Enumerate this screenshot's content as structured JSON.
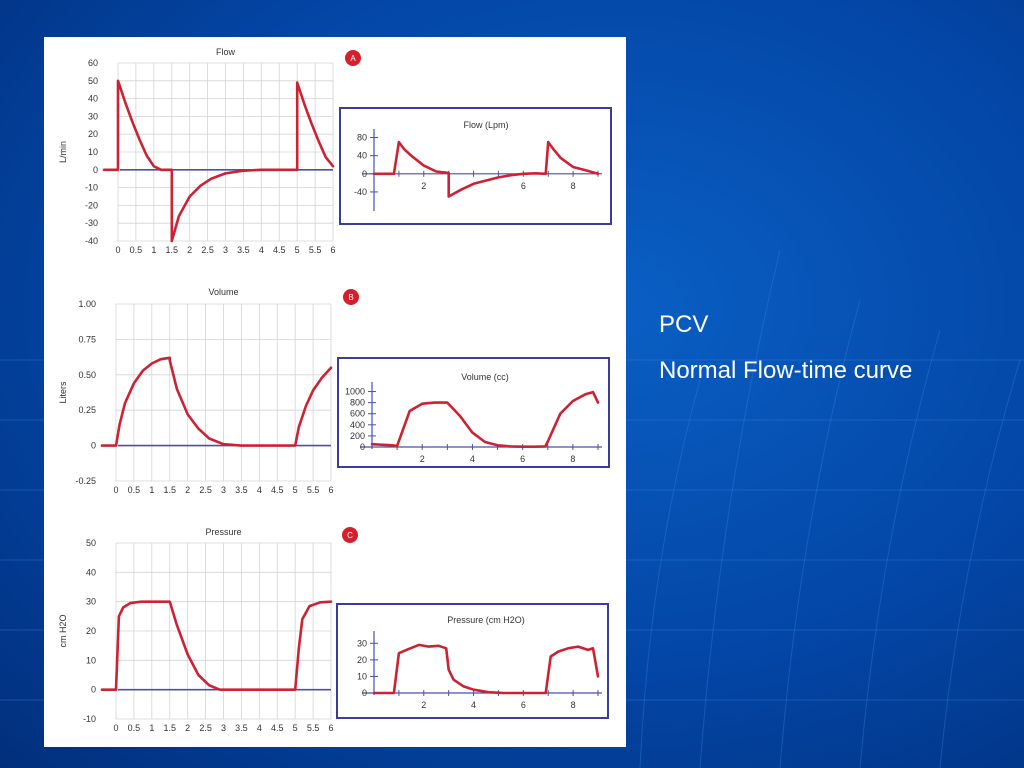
{
  "slide": {
    "title": "PCV",
    "subtitle": "Normal Flow-time curve",
    "colors": {
      "background": "#0346a6",
      "curve": "#cc2233",
      "baseline": "#4a4fb0",
      "frame": "#3c3c9a"
    }
  },
  "chart_data": [
    {
      "id": "flow-main",
      "type": "line",
      "title": "Flow",
      "ylabel": "L/min",
      "xlabel": "",
      "badge": "A",
      "grid": true,
      "xlim": [
        0,
        6
      ],
      "ylim": [
        -40,
        60
      ],
      "x_ticks": [
        "0",
        "0.5",
        "1",
        "1.5",
        "2",
        "2.5",
        "3",
        "3.5",
        "4",
        "4.5",
        "5",
        "5.5",
        "6"
      ],
      "y_ticks": [
        "60",
        "50",
        "40",
        "30",
        "20",
        "10",
        "0",
        "-10",
        "-20",
        "-30",
        "-40"
      ],
      "series": [
        {
          "x": [
            -0.4,
            0,
            0,
            0.2,
            0.4,
            0.6,
            0.8,
            1,
            1.2,
            1.4,
            1.5,
            1.5,
            1.7,
            2,
            2.3,
            2.6,
            3,
            3.5,
            4,
            4.5,
            5,
            5,
            5.2,
            5.4,
            5.6,
            5.8,
            6
          ],
          "y": [
            0,
            0,
            50,
            38,
            27,
            17,
            8,
            2,
            0,
            0,
            0,
            -40,
            -26,
            -15,
            -9,
            -5,
            -2,
            -0.5,
            0,
            0,
            0,
            49,
            37,
            26,
            16,
            7,
            2
          ]
        }
      ]
    },
    {
      "id": "flow-inset",
      "type": "line",
      "title": "Flow (Lpm)",
      "xlabel": "",
      "ylabel": "",
      "xlim": [
        0,
        9
      ],
      "ylim": [
        -60,
        90
      ],
      "x_ticks": [
        "2",
        "6",
        "8"
      ],
      "y_ticks": [
        "80",
        "40",
        "0",
        "-40"
      ],
      "series": [
        {
          "x": [
            0,
            0.8,
            1,
            1.2,
            1.5,
            2,
            2.5,
            3,
            3,
            3.5,
            4,
            5,
            5.5,
            6,
            6.5,
            6.9,
            7,
            7.2,
            7.5,
            8,
            8.5,
            9
          ],
          "y": [
            0,
            0,
            70,
            55,
            40,
            18,
            5,
            2,
            -50,
            -35,
            -22,
            -8,
            -3,
            0,
            1,
            0,
            70,
            55,
            35,
            15,
            8,
            0
          ]
        }
      ]
    },
    {
      "id": "volume-main",
      "type": "line",
      "title": "Volume",
      "ylabel": "Liters",
      "xlabel": "",
      "badge": "B",
      "grid": true,
      "xlim": [
        0,
        6
      ],
      "ylim": [
        -0.25,
        1.0
      ],
      "x_ticks": [
        "0",
        "0.5",
        "1",
        "1.5",
        "2",
        "2.5",
        "3",
        "3.5",
        "4",
        "4.5",
        "5",
        "5.5",
        "6"
      ],
      "y_ticks": [
        "1.00",
        "0.75",
        "0.50",
        "0.25",
        "0",
        "-0.25"
      ],
      "series": [
        {
          "x": [
            -0.4,
            0,
            0.1,
            0.25,
            0.5,
            0.75,
            1,
            1.25,
            1.5,
            1.5,
            1.7,
            2,
            2.3,
            2.6,
            3,
            3.5,
            4,
            4.5,
            5,
            5.1,
            5.3,
            5.5,
            5.75,
            6
          ],
          "y": [
            0,
            0,
            0.15,
            0.3,
            0.44,
            0.53,
            0.58,
            0.61,
            0.62,
            0.6,
            0.4,
            0.22,
            0.12,
            0.05,
            0.01,
            0,
            0,
            0,
            0,
            0.13,
            0.28,
            0.39,
            0.48,
            0.55
          ]
        }
      ]
    },
    {
      "id": "volume-inset",
      "type": "line",
      "title": "Volume (cc)",
      "xlabel": "",
      "ylabel": "",
      "xlim": [
        0,
        9
      ],
      "ylim": [
        0,
        1100
      ],
      "x_ticks": [
        "2",
        "4",
        "6",
        "8"
      ],
      "y_ticks": [
        "1000",
        "800",
        "600",
        "400",
        "200",
        "0"
      ],
      "series": [
        {
          "x": [
            0,
            0.8,
            1,
            1.5,
            2,
            2.5,
            3,
            3.5,
            4,
            4.5,
            5,
            5.5,
            6,
            6.5,
            6.9,
            7,
            7.5,
            8,
            8.5,
            8.8,
            9
          ],
          "y": [
            50,
            30,
            20,
            650,
            780,
            800,
            800,
            560,
            260,
            90,
            30,
            10,
            5,
            5,
            10,
            100,
            600,
            830,
            950,
            990,
            800
          ]
        }
      ]
    },
    {
      "id": "pressure-main",
      "type": "line",
      "title": "Pressure",
      "ylabel": "cm H2O",
      "xlabel": "",
      "badge": "C",
      "grid": true,
      "xlim": [
        0,
        6
      ],
      "ylim": [
        -10,
        50
      ],
      "x_ticks": [
        "0",
        "0.5",
        "1",
        "1.5",
        "2",
        "2.5",
        "3",
        "3.5",
        "4",
        "4.5",
        "5",
        "5.5",
        "6"
      ],
      "y_ticks": [
        "50",
        "40",
        "30",
        "20",
        "10",
        "0",
        "-10"
      ],
      "series": [
        {
          "x": [
            -0.4,
            0,
            0.08,
            0.2,
            0.4,
            0.7,
            1,
            1.5,
            1.7,
            2,
            2.3,
            2.6,
            2.9,
            3.5,
            4,
            4.5,
            5,
            5.1,
            5.2,
            5.4,
            5.7,
            6
          ],
          "y": [
            0,
            0,
            25,
            28,
            29.5,
            30,
            30,
            30,
            22,
            12,
            5,
            1.5,
            0,
            0,
            0,
            0,
            0,
            14,
            24,
            28.5,
            29.8,
            30
          ]
        }
      ]
    },
    {
      "id": "pressure-inset",
      "type": "line",
      "title": "Pressure (cm H2O)",
      "xlabel": "",
      "ylabel": "",
      "xlim": [
        0,
        9
      ],
      "ylim": [
        0,
        35
      ],
      "x_ticks": [
        "2",
        "4",
        "6",
        "8"
      ],
      "y_ticks": [
        "30",
        "20",
        "10",
        "0"
      ],
      "series": [
        {
          "x": [
            0,
            0.8,
            1,
            1.3,
            1.8,
            2.2,
            2.6,
            2.9,
            3,
            3.2,
            3.6,
            4,
            4.6,
            5.2,
            5.8,
            6.5,
            6.9,
            7.1,
            7.4,
            7.8,
            8.2,
            8.6,
            8.8,
            9
          ],
          "y": [
            0,
            0,
            24,
            26,
            29,
            28,
            28.5,
            27,
            14,
            8,
            4,
            2,
            0.5,
            0,
            0,
            0,
            0,
            22,
            25,
            27,
            28,
            26,
            27,
            10
          ]
        }
      ]
    }
  ]
}
